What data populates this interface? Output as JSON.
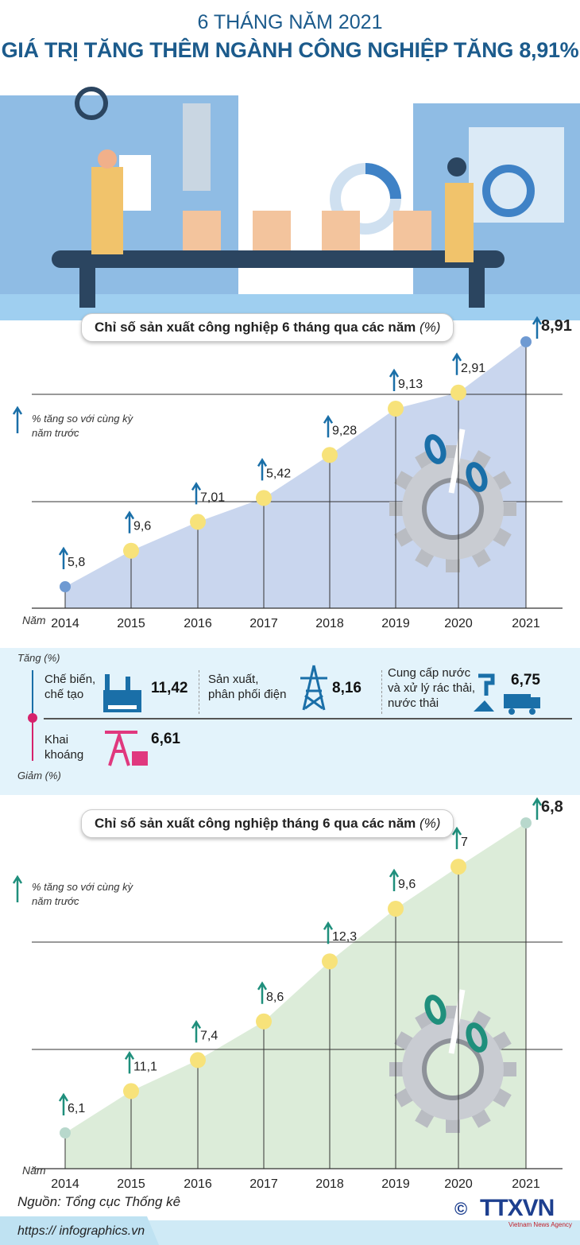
{
  "header": {
    "subtitle": "6 THÁNG NĂM 2021",
    "title": "GIÁ TRỊ TĂNG THÊM NGÀNH CÔNG NGHIỆP TĂNG 8,91%"
  },
  "chart_data": [
    {
      "type": "area",
      "title": "Chỉ số sản xuất công nghiệp 6 tháng qua các năm",
      "title_unit": "(%)",
      "legend": "% tăng so với cùng kỳ năm trước",
      "xlabel": "Năm",
      "categories": [
        "2014",
        "2015",
        "2016",
        "2017",
        "2018",
        "2019",
        "2020",
        "2021"
      ],
      "values": [
        5.8,
        9.6,
        7.01,
        5.42,
        9.28,
        9.13,
        2.91,
        8.91
      ],
      "labels": [
        "5,8",
        "9,6",
        "7,01",
        "5,42",
        "9,28",
        "9,13",
        "2,91",
        "8,91"
      ],
      "fill": "#c9d6ee",
      "accent": "#1a6fa8"
    },
    {
      "type": "area",
      "title": "Chỉ số sản xuất công nghiệp tháng 6 qua các năm",
      "title_unit": "(%)",
      "legend": "% tăng so với cùng kỳ năm trước",
      "xlabel": "Năm",
      "categories": [
        "2014",
        "2015",
        "2016",
        "2017",
        "2018",
        "2019",
        "2020",
        "2021"
      ],
      "values": [
        6.1,
        11.1,
        7.4,
        8.6,
        12.3,
        9.6,
        7,
        6.8
      ],
      "labels": [
        "6,1",
        "11,1",
        "7,4",
        "8,6",
        "12,3",
        "9,6",
        "7",
        "6,8"
      ],
      "fill": "#dcecd9",
      "accent": "#1f8f7c"
    }
  ],
  "sectors": {
    "up_label": "Tăng (%)",
    "down_label": "Giảm (%)",
    "items": [
      {
        "name": "Chế biến, chế tạo",
        "line1": "Chế biến,",
        "line2": "chế tạo",
        "value": "11,42"
      },
      {
        "name": "Sản xuất, phân phối điện",
        "line1": "Sản xuất,",
        "line2": "phân phối điện",
        "value": "8,16"
      },
      {
        "name": "Cung cấp nước và xử lý rác thải, nước thải",
        "line1": "Cung cấp nước",
        "line2": "và xử lý rác thải,",
        "line3": "nước thải",
        "value": "6,75"
      },
      {
        "name": "Khai khoáng",
        "line1": "Khai",
        "line2": "khoáng",
        "value": "6,61"
      }
    ]
  },
  "footer": {
    "source": "Nguồn: Tổng cục Thống kê",
    "url": "https:// infographics.vn",
    "logo": "TTXVN",
    "logo_sub": "Vietnam News Agency",
    "copyright": "©"
  }
}
